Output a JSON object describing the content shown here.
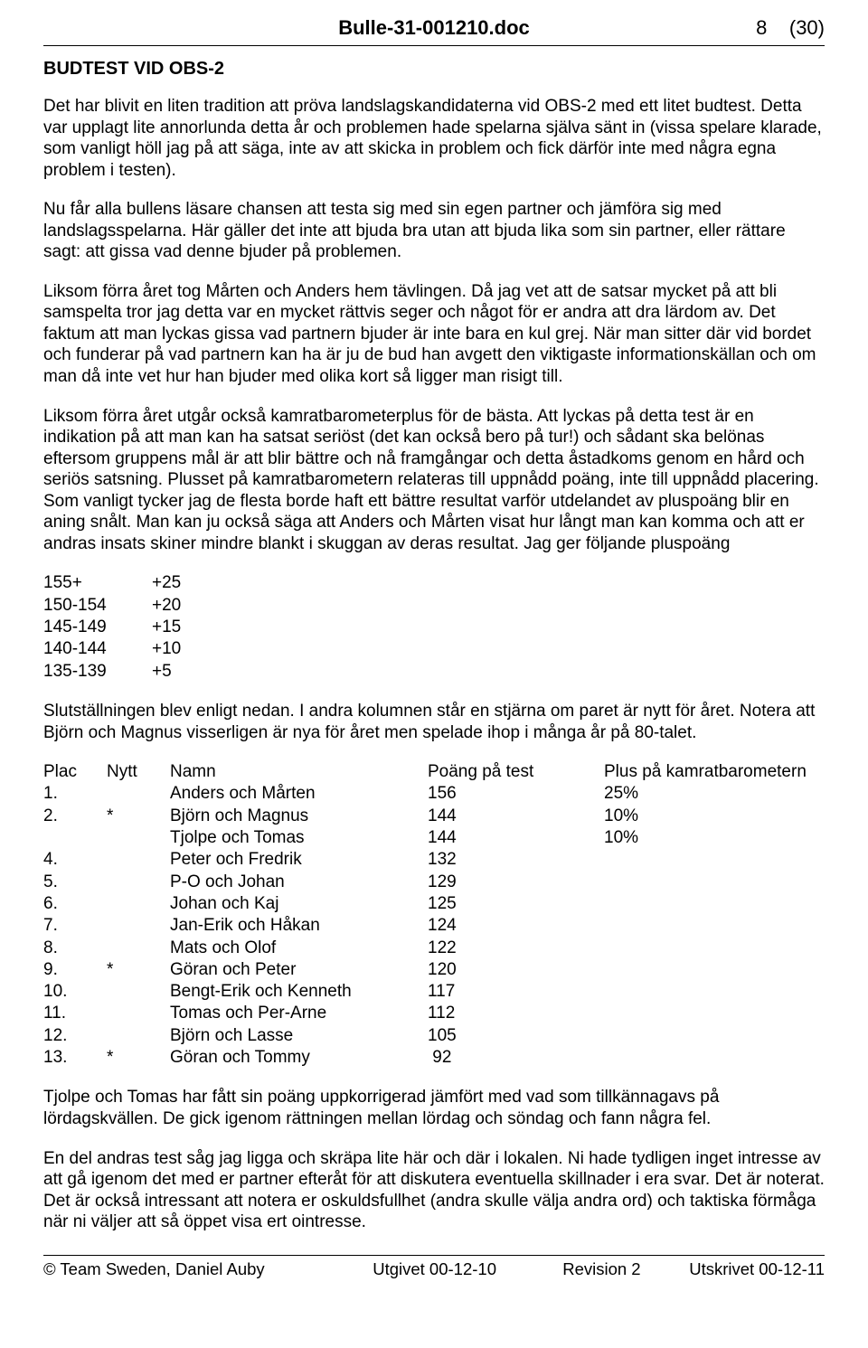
{
  "header": {
    "title": "Bulle-31-001210.doc",
    "page_current": "8",
    "page_total": "(30)"
  },
  "section_title": "BUDTEST VID OBS-2",
  "paragraphs": {
    "p1": "Det har blivit en liten tradition att pröva landslagskandidaterna vid OBS-2 med ett litet budtest. Detta var upplagt lite annorlunda detta år och problemen hade spelarna själva sänt in (vissa spelare klarade, som vanligt höll jag på att säga, inte av att skicka in problem och fick därför inte med några egna problem i testen).",
    "p2": "Nu får alla bullens läsare chansen att testa sig med sin egen partner och jämföra sig med landslagsspelarna. Här gäller det inte att bjuda bra utan att bjuda lika som sin partner, eller rättare sagt: att gissa vad denne bjuder på problemen.",
    "p3": "Liksom förra året tog Mårten och Anders hem tävlingen. Då jag vet att de satsar mycket på att bli samspelta tror jag detta var en mycket rättvis seger och något för er andra att dra lärdom av. Det faktum att man lyckas gissa vad partnern bjuder är inte bara en kul grej. När man sitter där vid bordet och funderar på vad partnern kan ha är ju de bud han avgett den viktigaste informationskällan och om man då inte vet hur han bjuder med olika kort så ligger man risigt till.",
    "p4": "Liksom förra året utgår också kamratbarometerplus för de bästa. Att lyckas på detta test är en indikation på att man kan ha satsat seriöst (det kan också bero på tur!) och sådant ska belönas eftersom gruppens mål är att blir bättre och nå framgångar och detta åstadkoms genom en hård och seriös satsning. Plusset på kamratbarometern relateras till uppnådd poäng, inte till uppnådd placering. Som vanligt tycker jag de flesta borde haft ett bättre resultat varför utdelandet av pluspoäng blir en aning snålt. Man kan ju också säga att Anders och Mårten visat hur långt man kan komma och att er andras insats skiner mindre blankt i skuggan av deras resultat. Jag ger följande pluspoäng",
    "p5": "Slutställningen blev enligt nedan. I andra kolumnen står en stjärna om paret är nytt för året. Notera att Björn och Magnus visserligen är nya för året men spelade ihop i många år på 80-talet.",
    "p6": "Tjolpe och Tomas har fått sin poäng uppkorrigerad jämfört med vad som tillkännagavs på lördagskvällen. De gick igenom rättningen mellan lördag och söndag och fann några fel.",
    "p7": "En del andras test såg jag ligga och skräpa lite här och där i lokalen. Ni hade tydligen inget intresse av att gå igenom det med er partner efteråt för att diskutera eventuella skillnader i era svar. Det är noterat. Det är också intressant att notera er oskuldsfullhet (andra skulle välja andra ord) och taktiska förmåga när ni väljer att så öppet visa ert ointresse."
  },
  "bonus_table": [
    {
      "range": "155+",
      "value": "+25"
    },
    {
      "range": "150-154",
      "value": "+20"
    },
    {
      "range": "145-149",
      "value": "+15"
    },
    {
      "range": "140-144",
      "value": "+10"
    },
    {
      "range": "135-139",
      "value": "+5"
    }
  ],
  "standings": {
    "headers": {
      "plac": "Plac",
      "nytt": "Nytt",
      "namn": "Namn",
      "poang": "Poäng på test",
      "plus": "Plus på kamratbarometern"
    },
    "rows": [
      {
        "plac": "1.",
        "nytt": "",
        "namn": "Anders och Mårten",
        "poang": "156",
        "plus": "25%"
      },
      {
        "plac": "2.",
        "nytt": "*",
        "namn": "Björn och Magnus",
        "poang": "144",
        "plus": "10%"
      },
      {
        "plac": "",
        "nytt": "",
        "namn": "Tjolpe och Tomas",
        "poang": "144",
        "plus": "10%"
      },
      {
        "plac": "4.",
        "nytt": "",
        "namn": "Peter och Fredrik",
        "poang": "132",
        "plus": ""
      },
      {
        "plac": "5.",
        "nytt": "",
        "namn": "P-O och Johan",
        "poang": "129",
        "plus": ""
      },
      {
        "plac": "6.",
        "nytt": "",
        "namn": "Johan och Kaj",
        "poang": "125",
        "plus": ""
      },
      {
        "plac": "7.",
        "nytt": "",
        "namn": "Jan-Erik och Håkan",
        "poang": "124",
        "plus": ""
      },
      {
        "plac": "8.",
        "nytt": "",
        "namn": "Mats och Olof",
        "poang": "122",
        "plus": ""
      },
      {
        "plac": "9.",
        "nytt": "*",
        "namn": "Göran och Peter",
        "poang": "120",
        "plus": ""
      },
      {
        "plac": "10.",
        "nytt": "",
        "namn": "Bengt-Erik och Kenneth",
        "poang": "117",
        "plus": ""
      },
      {
        "plac": "11.",
        "nytt": "",
        "namn": "Tomas och Per-Arne",
        "poang": "112",
        "plus": ""
      },
      {
        "plac": "12.",
        "nytt": "",
        "namn": "Björn och Lasse",
        "poang": "105",
        "plus": ""
      },
      {
        "plac": "13.",
        "nytt": "*",
        "namn": "Göran och Tommy",
        "poang": " 92",
        "plus": ""
      }
    ]
  },
  "footer": {
    "left": "© Team Sweden, Daniel Auby",
    "mid1": "Utgivet 00-12-10",
    "mid2": "Revision 2",
    "right": "Utskrivet 00-12-11"
  }
}
